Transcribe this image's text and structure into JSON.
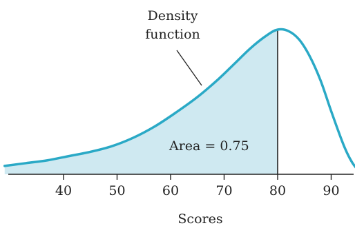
{
  "chart_data": {
    "type": "area",
    "xlabel": "Scores",
    "ylabel": "",
    "title": "",
    "xlim": [
      29,
      95
    ],
    "x_ticks": [
      40,
      50,
      60,
      70,
      80,
      90
    ],
    "x_tick_labels": [
      "40",
      "50",
      "60",
      "70",
      "80",
      "90"
    ],
    "curve": {
      "x": [
        29,
        33,
        37,
        41,
        45,
        49,
        53,
        57,
        61,
        65,
        69,
        72,
        75,
        78,
        80,
        82,
        84,
        86,
        88,
        90,
        92,
        93,
        94,
        95
      ],
      "y": [
        0.03,
        0.05,
        0.07,
        0.1,
        0.13,
        0.17,
        0.23,
        0.31,
        0.41,
        0.52,
        0.65,
        0.76,
        0.87,
        0.96,
        1.0,
        0.99,
        0.93,
        0.81,
        0.64,
        0.42,
        0.21,
        0.12,
        0.05,
        0.0
      ]
    },
    "shaded_region": {
      "x_start": 29,
      "x_end": 80
    },
    "vertical_line_x": 80,
    "annotations": {
      "area_label": "Area = 0.75",
      "density_label_line1": "Density",
      "density_label_line2": "function"
    },
    "colors": {
      "curve": "#2aa9c6",
      "fill": "#cfe9f1",
      "axis": "#222222"
    },
    "grid": false
  }
}
